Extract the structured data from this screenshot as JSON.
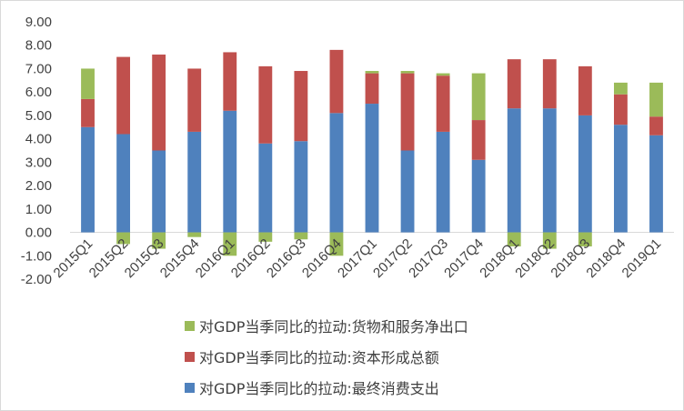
{
  "chart_data": {
    "type": "bar",
    "stacked": true,
    "categories": [
      "2015Q1",
      "2015Q2",
      "2015Q3",
      "2015Q4",
      "2016Q1",
      "2016Q2",
      "2016Q3",
      "2016Q4",
      "2017Q1",
      "2017Q2",
      "2017Q3",
      "2017Q4",
      "2018Q1",
      "2018Q2",
      "2018Q3",
      "2018Q4",
      "2019Q1"
    ],
    "series": [
      {
        "name": "对GDP当季同比的拉动:最终消费支出",
        "color": "#4f81bd",
        "values": [
          4.5,
          4.2,
          3.5,
          4.3,
          5.2,
          3.8,
          3.9,
          5.1,
          5.5,
          3.5,
          4.3,
          3.1,
          5.3,
          5.3,
          5.0,
          4.6,
          4.15
        ]
      },
      {
        "name": "对GDP当季同比的拉动:资本形成总额",
        "color": "#c0504d",
        "values": [
          1.2,
          3.3,
          4.1,
          2.7,
          2.5,
          3.3,
          3.0,
          2.7,
          1.3,
          3.3,
          2.4,
          1.7,
          2.1,
          2.1,
          2.1,
          1.3,
          0.8
        ]
      },
      {
        "name": "对GDP当季同比的拉动:货物和服务净出口",
        "color": "#9bbb59",
        "values": [
          1.3,
          -0.5,
          -0.7,
          -0.2,
          -1.0,
          -0.4,
          -0.3,
          -1.0,
          0.1,
          0.1,
          0.1,
          2.0,
          -0.6,
          -0.7,
          -0.6,
          0.5,
          1.45
        ]
      }
    ],
    "ylim": [
      -2.0,
      9.0
    ],
    "yticks": [
      "-2.00",
      "-1.00",
      "0.00",
      "1.00",
      "2.00",
      "3.00",
      "4.00",
      "5.00",
      "6.00",
      "7.00",
      "8.00",
      "9.00"
    ],
    "grid": true,
    "legend_position": "bottom",
    "title": "",
    "xlabel": "",
    "ylabel": ""
  }
}
